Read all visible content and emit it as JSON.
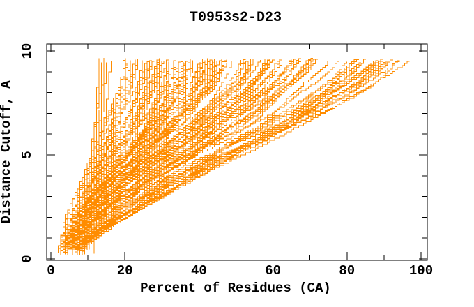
{
  "chart_data": {
    "type": "line",
    "title": "T0953s2-D23",
    "xlabel": "Percent of Residues (CA)",
    "ylabel": "Distance Cutoff, A",
    "xlim": [
      0,
      100
    ],
    "ylim": [
      0,
      10
    ],
    "x_major_ticks": [
      0,
      20,
      40,
      60,
      80,
      100
    ],
    "x_tick_labels": [
      "0",
      "20",
      "40",
      "60",
      "80",
      "100"
    ],
    "x_minor_step": 10,
    "y_major_ticks": [
      0,
      5,
      10
    ],
    "y_tick_labels": [
      "0",
      "5",
      "10"
    ],
    "y_minor_step": 1,
    "grid": false,
    "legend": false,
    "frame_color": "#000000",
    "series_color": "#ff8c00",
    "series_count_estimate": 144,
    "curves": {
      "seed": 1337,
      "count_total": 144,
      "percent_step": 0.65,
      "cutoff_step": 0.1,
      "cutoff_start_min": 0.18,
      "cutoff_start_jitter": 0.35,
      "cutoff_end_max": 9.68,
      "cutoff_end_jitter": 0.2,
      "groups": [
        {
          "name": "left-wall",
          "count": 7,
          "start_min": 8,
          "start_max": 12,
          "top_min": 12.5,
          "top_max": 16.5,
          "bias": 1.0,
          "smooth_min": 0.55,
          "smooth_max": 0.9
        },
        {
          "name": "main-bundle",
          "count": 92,
          "start_min": 2,
          "start_max": 9,
          "top_min": 20,
          "top_max": 58,
          "bias": 1.3,
          "smooth_min": 0.45,
          "smooth_max": 0.85
        },
        {
          "name": "right-fan",
          "count": 32,
          "start_min": 2,
          "start_max": 9,
          "top_min": 58,
          "top_max": 86,
          "bias": 1.0,
          "smooth_min": 0.3,
          "smooth_max": 0.6
        },
        {
          "name": "far-right",
          "count": 13,
          "start_min": 3,
          "start_max": 10,
          "top_min": 86,
          "top_max": 98,
          "bias": 0.85,
          "smooth_min": 0.2,
          "smooth_max": 0.5
        }
      ]
    }
  }
}
